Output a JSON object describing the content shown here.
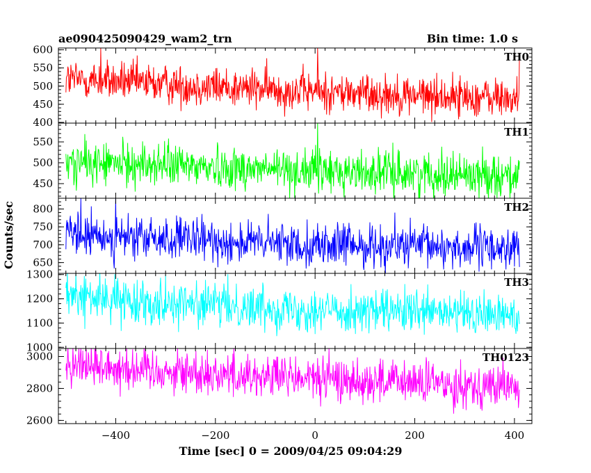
{
  "header": {
    "title": "ae090425090429_wam2_trn",
    "bin_time": "Bin time: 1.0 s"
  },
  "chart_data": {
    "type": "line",
    "xlabel": "Time [sec] 0 = 2009/04/25 09:04:29",
    "ylabel": "Counts/sec",
    "xlim": [
      -515,
      435
    ],
    "x_range": [
      -500,
      410
    ],
    "xticks": [
      -400,
      -200,
      0,
      200,
      400
    ],
    "xtick_labels": [
      "−400",
      "−200",
      "0",
      "200",
      "400"
    ],
    "grid": false,
    "panels": [
      {
        "name": "TH0",
        "color": "#ff0000",
        "ylim": [
          398,
          605
        ],
        "yticks": [
          400,
          450,
          500,
          550,
          600
        ],
        "trend": [
          [
            -500,
            520
          ],
          [
            -300,
            505
          ],
          [
            0,
            485
          ],
          [
            410,
            465
          ]
        ],
        "noise": 28,
        "spikes": [
          [
            -430,
            605
          ],
          [
            5,
            605
          ],
          [
            410,
            590
          ]
        ]
      },
      {
        "name": "TH1",
        "color": "#00ff00",
        "ylim": [
          415,
          595
        ],
        "yticks": [
          450,
          500,
          550
        ],
        "trend": [
          [
            -500,
            500
          ],
          [
            -300,
            495
          ],
          [
            0,
            480
          ],
          [
            410,
            470
          ]
        ],
        "noise": 26,
        "spikes": [
          [
            5,
            595
          ]
        ]
      },
      {
        "name": "TH2",
        "color": "#0000ff",
        "ylim": [
          620,
          830
        ],
        "yticks": [
          650,
          700,
          750,
          800
        ],
        "trend": [
          [
            -500,
            725
          ],
          [
            -300,
            715
          ],
          [
            0,
            700
          ],
          [
            410,
            690
          ]
        ],
        "noise": 30,
        "spikes": [
          [
            -470,
            830
          ],
          [
            -400,
            830
          ],
          [
            160,
            790
          ]
        ]
      },
      {
        "name": "TH3",
        "color": "#00ffff",
        "ylim": [
          995,
          1305
        ],
        "yticks": [
          1000,
          1100,
          1200,
          1300
        ],
        "trend": [
          [
            -500,
            1210
          ],
          [
            -300,
            1185
          ],
          [
            0,
            1155
          ],
          [
            410,
            1130
          ]
        ],
        "noise": 45,
        "spikes": [
          [
            -480,
            1305
          ],
          [
            -300,
            1300
          ]
        ]
      },
      {
        "name": "TH0123",
        "color": "#ff00ff",
        "ylim": [
          2580,
          3050
        ],
        "yticks": [
          2600,
          2800,
          3000
        ],
        "trend": [
          [
            -500,
            2960
          ],
          [
            -300,
            2910
          ],
          [
            0,
            2860
          ],
          [
            410,
            2810
          ]
        ],
        "noise": 70,
        "spikes": [
          [
            -470,
            3050
          ],
          [
            5,
            2990
          ]
        ]
      }
    ]
  }
}
